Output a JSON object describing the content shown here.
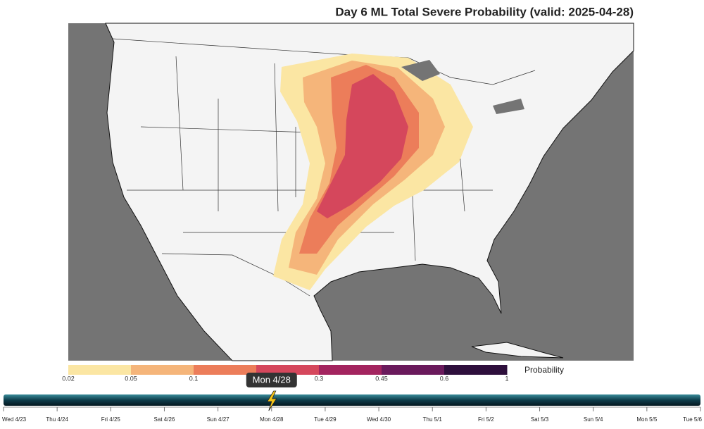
{
  "title": "Day 6 ML Total Severe Probability (valid: 2025-04-28)",
  "colorbar": {
    "label": "Probability",
    "colors": [
      "#fbe6a3",
      "#f5b57a",
      "#ec7d5a",
      "#d5475c",
      "#a3245f",
      "#6a1a5c",
      "#2e0f3c"
    ],
    "ticks": [
      "0.02",
      "0.05",
      "0.1",
      null,
      "0.3",
      "0.45",
      "0.6",
      "1"
    ]
  },
  "timeline": {
    "selected": "Mon 4/28",
    "selected_index": 5,
    "days": [
      "Wed 4/23",
      "Thu 4/24",
      "Fri 4/25",
      "Sat 4/26",
      "Sun 4/27",
      "Mon 4/28",
      "Tue 4/29",
      "Wed 4/30",
      "Thu 5/1",
      "Fri 5/2",
      "Sat 5/3",
      "Sun 5/4",
      "Mon 5/5",
      "Tue 5/6"
    ]
  }
}
